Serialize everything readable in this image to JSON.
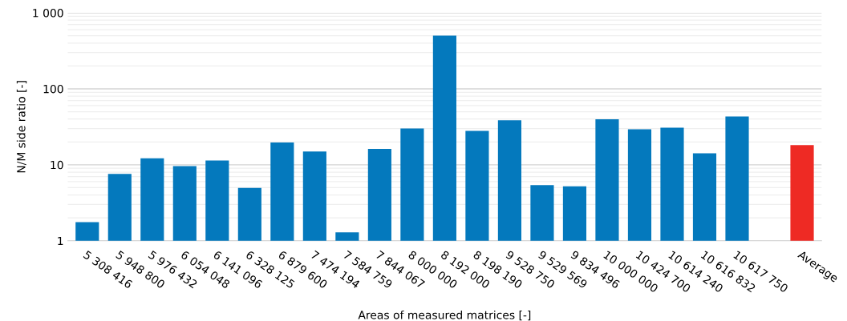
{
  "chart_data": {
    "type": "bar",
    "xlabel": "Areas of measured matrices [-]",
    "ylabel": "N/M side ratio [-]",
    "categories": [
      "5 308 416",
      "5 948 800",
      "5 976 432",
      "6 054 048",
      "6 141 096",
      "6 328 125",
      "6 879 600",
      "7 474 194",
      "7 584 759",
      "7 844 067",
      "8 000 000",
      "8 192 000",
      "8 198 190",
      "9 528 750",
      "9 529 569",
      "9 834 496",
      "10 000 000",
      "10 424 700",
      "10 614 240",
      "10 616 832",
      "10 617 750",
      null,
      "Average"
    ],
    "values": [
      1.76,
      7.6,
      12.2,
      9.6,
      11.4,
      4.95,
      19.7,
      15,
      1.29,
      16.2,
      30,
      500,
      28,
      38.6,
      5.4,
      5.2,
      39.8,
      29.3,
      30.8,
      14.2,
      43.2,
      null,
      18.2
    ],
    "colors": [
      "#0479bd",
      "#0479bd",
      "#0479bd",
      "#0479bd",
      "#0479bd",
      "#0479bd",
      "#0479bd",
      "#0479bd",
      "#0479bd",
      "#0479bd",
      "#0479bd",
      "#0479bd",
      "#0479bd",
      "#0479bd",
      "#0479bd",
      "#0479bd",
      "#0479bd",
      "#0479bd",
      "#0479bd",
      "#0479bd",
      "#0479bd",
      "#0479bd",
      "#ee2a24"
    ],
    "log": "y",
    "ylim": [
      1,
      1000
    ],
    "yticks": [
      1,
      10,
      100,
      {
        "value": 1000,
        "label": "1 000"
      }
    ],
    "grid": "y"
  }
}
